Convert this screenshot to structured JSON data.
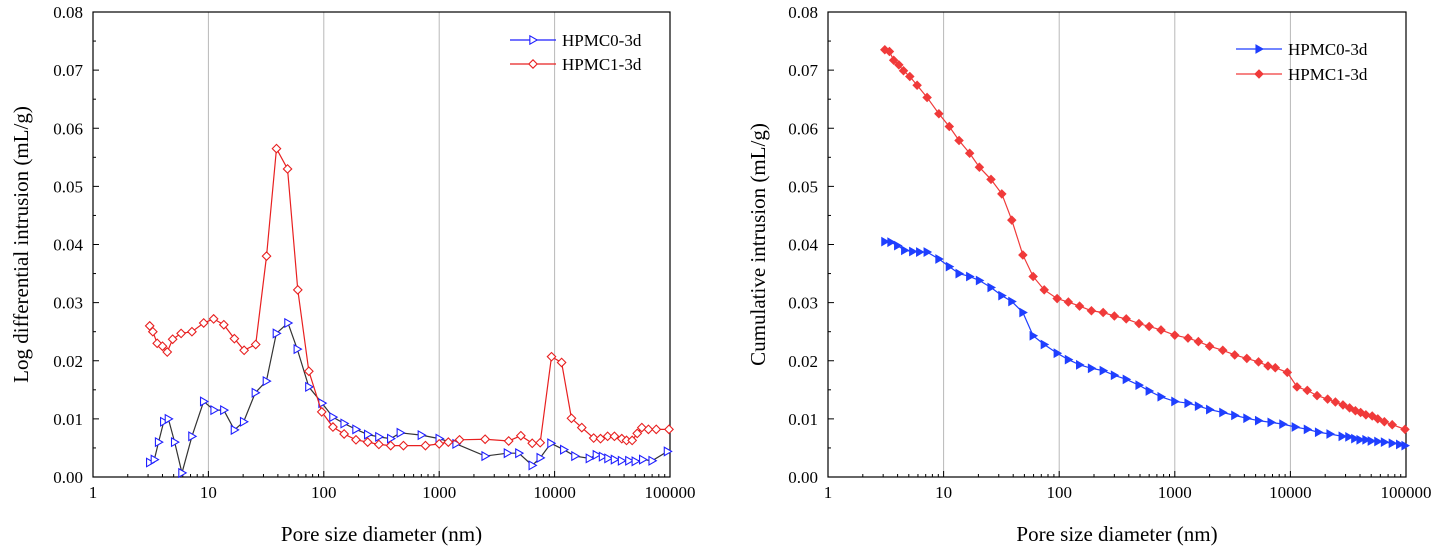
{
  "chart_data": [
    {
      "type": "line",
      "xscale": "log",
      "xlim": [
        1,
        100000
      ],
      "ylim": [
        0,
        0.08
      ],
      "xticks": [
        "1",
        "10",
        "100",
        "1000",
        "10000",
        "100000"
      ],
      "yticks": [
        "0.00",
        "0.01",
        "0.02",
        "0.03",
        "0.04",
        "0.05",
        "0.06",
        "0.07",
        "0.08"
      ],
      "xlabel": "Pore size diameter (nm)",
      "ylabel": "Log differential intrusion (mL/g)",
      "grid": "vertical",
      "legend": "top-right",
      "series": [
        {
          "name": "HPMC0-3d",
          "color": "#1f1fff",
          "marker": "open-triangle-right",
          "x": [
            3.1,
            3.4,
            3.7,
            4.1,
            4.5,
            5.1,
            5.9,
            7.2,
            9.1,
            11.2,
            13.6,
            16.8,
            20.2,
            25.5,
            31.8,
            38.8,
            48.9,
            58.9,
            74.2,
            96.5,
            120,
            150,
            190,
            240,
            300,
            380,
            460,
            700,
            1000,
            1400,
            2500,
            3900,
            4900,
            6400,
            7500,
            9300,
            12000,
            15000,
            20000,
            23000,
            26000,
            29000,
            33000,
            38000,
            44000,
            50000,
            58000,
            70000,
            95000
          ],
          "y": [
            0.0025,
            0.003,
            0.006,
            0.0095,
            0.01,
            0.006,
            0.0007,
            0.007,
            0.013,
            0.0115,
            0.0115,
            0.0081,
            0.0095,
            0.0145,
            0.0165,
            0.0247,
            0.0265,
            0.022,
            0.0155,
            0.0127,
            0.0103,
            0.0092,
            0.0082,
            0.0073,
            0.0069,
            0.0066,
            0.0076,
            0.0072,
            0.0066,
            0.0057,
            0.0036,
            0.0041,
            0.0041,
            0.002,
            0.0033,
            0.0058,
            0.0047,
            0.0036,
            0.0032,
            0.0038,
            0.0035,
            0.0032,
            0.003,
            0.0028,
            0.0028,
            0.0027,
            0.003,
            0.0028,
            0.0044
          ]
        },
        {
          "name": "HPMC1-3d",
          "color": "#e82020",
          "marker": "open-diamond",
          "x": [
            3.1,
            3.3,
            3.6,
            4.0,
            4.4,
            4.9,
            5.8,
            7.2,
            9.1,
            11.1,
            13.6,
            16.8,
            20.4,
            25.7,
            31.9,
            38.9,
            48.5,
            59.5,
            74.2,
            96,
            120,
            150,
            190,
            240,
            300,
            380,
            490,
            760,
            1000,
            1200,
            1500,
            2500,
            4000,
            5100,
            6400,
            7500,
            9400,
            11500,
            14000,
            17200,
            21800,
            25000,
            28800,
            33000,
            38200,
            42000,
            47000,
            52000,
            57000,
            65000,
            76000,
            98000
          ],
          "y": [
            0.026,
            0.025,
            0.023,
            0.0225,
            0.0215,
            0.0237,
            0.0247,
            0.025,
            0.0265,
            0.0272,
            0.0262,
            0.0238,
            0.0218,
            0.0228,
            0.038,
            0.0565,
            0.053,
            0.0322,
            0.0182,
            0.0112,
            0.0086,
            0.0074,
            0.0064,
            0.006,
            0.0056,
            0.0054,
            0.0054,
            0.0054,
            0.0057,
            0.006,
            0.0064,
            0.0065,
            0.0062,
            0.0071,
            0.0058,
            0.0059,
            0.0207,
            0.0197,
            0.0101,
            0.0085,
            0.0067,
            0.0066,
            0.007,
            0.007,
            0.0066,
            0.0063,
            0.0063,
            0.0075,
            0.0085,
            0.0082,
            0.0082,
            0.0082
          ]
        }
      ]
    },
    {
      "type": "line",
      "xscale": "log",
      "xlim": [
        1,
        100000
      ],
      "ylim": [
        0,
        0.08
      ],
      "xticks": [
        "1",
        "10",
        "100",
        "1000",
        "10000",
        "100000"
      ],
      "yticks": [
        "0.00",
        "0.01",
        "0.02",
        "0.03",
        "0.04",
        "0.05",
        "0.06",
        "0.07",
        "0.08"
      ],
      "xlabel": "Pore size diameter (nm)",
      "ylabel": "Cumulative intrusion (mL/g)",
      "grid": "vertical",
      "legend": "top-right",
      "series": [
        {
          "name": "HPMC0-3d",
          "color": "#1f3fff",
          "marker": "filled-triangle-right",
          "x": [
            3.1,
            3.5,
            4.0,
            4.6,
            5.4,
            6.2,
            7.2,
            9.1,
            11.2,
            13.6,
            16.8,
            20.4,
            25.7,
            31.9,
            38.9,
            48.5,
            59.5,
            74.2,
            96,
            120,
            150,
            190,
            240,
            300,
            380,
            490,
            600,
            760,
            1000,
            1300,
            1600,
            2000,
            2600,
            3300,
            4200,
            5300,
            6800,
            8600,
            11000,
            14000,
            17500,
            22000,
            28000,
            32000,
            36000,
            40000,
            45000,
            50000,
            57000,
            65000,
            76000,
            88000,
            98000
          ],
          "y": [
            0.0405,
            0.0404,
            0.0398,
            0.039,
            0.0388,
            0.0387,
            0.0387,
            0.0375,
            0.0362,
            0.035,
            0.0345,
            0.0338,
            0.0326,
            0.0312,
            0.0302,
            0.0283,
            0.0243,
            0.0228,
            0.0213,
            0.0202,
            0.0193,
            0.0187,
            0.0183,
            0.0175,
            0.0168,
            0.0158,
            0.0148,
            0.0138,
            0.013,
            0.0127,
            0.0122,
            0.0116,
            0.0111,
            0.0106,
            0.0101,
            0.0097,
            0.0094,
            0.0091,
            0.0086,
            0.0082,
            0.0077,
            0.0074,
            0.007,
            0.0069,
            0.0066,
            0.0064,
            0.0064,
            0.0062,
            0.0061,
            0.006,
            0.0058,
            0.0056,
            0.0054
          ]
        },
        {
          "name": "HPMC1-3d",
          "color": "#f03a3a",
          "marker": "filled-diamond",
          "x": [
            3.1,
            3.4,
            3.7,
            4.1,
            4.5,
            5.1,
            5.9,
            7.2,
            9.1,
            11.2,
            13.6,
            16.8,
            20.4,
            25.7,
            31.9,
            38.9,
            48.5,
            59.5,
            74.2,
            96,
            120,
            150,
            190,
            240,
            300,
            380,
            490,
            600,
            760,
            1000,
            1300,
            1600,
            2000,
            2600,
            3300,
            4200,
            5300,
            6400,
            7400,
            9400,
            11400,
            14000,
            17000,
            21000,
            24500,
            28500,
            32500,
            36500,
            40500,
            45000,
            51000,
            57000,
            65000,
            76000,
            98000
          ],
          "y": [
            0.0735,
            0.0732,
            0.0717,
            0.0709,
            0.0699,
            0.0689,
            0.0674,
            0.0653,
            0.0625,
            0.0603,
            0.0579,
            0.0557,
            0.0533,
            0.0512,
            0.0487,
            0.0442,
            0.0382,
            0.0345,
            0.0322,
            0.0307,
            0.0301,
            0.0294,
            0.0286,
            0.0283,
            0.0277,
            0.0272,
            0.0264,
            0.0259,
            0.0253,
            0.0244,
            0.0239,
            0.0233,
            0.0225,
            0.0218,
            0.021,
            0.0204,
            0.0198,
            0.0191,
            0.0188,
            0.018,
            0.0155,
            0.0149,
            0.014,
            0.0134,
            0.0129,
            0.0124,
            0.0119,
            0.0114,
            0.0111,
            0.0107,
            0.0105,
            0.01,
            0.0095,
            0.009,
            0.0082
          ]
        }
      ]
    }
  ]
}
